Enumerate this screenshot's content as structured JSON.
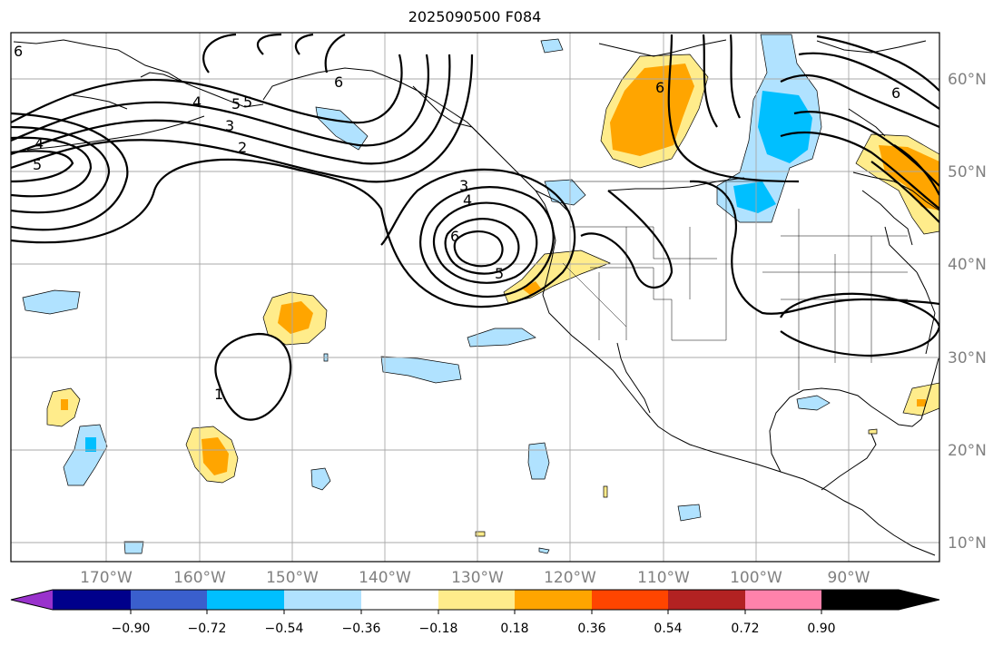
{
  "title": "2025090500 F084",
  "map": {
    "lon_ticks": [
      "170°W",
      "160°W",
      "150°W",
      "140°W",
      "130°W",
      "120°W",
      "110°W",
      "100°W",
      "90°W"
    ],
    "lat_ticks": [
      "60°N",
      "50°N",
      "40°N",
      "30°N",
      "20°N",
      "10°N"
    ],
    "contour_labels": [
      "6",
      "6",
      "6",
      "5",
      "5",
      "4",
      "3",
      "2",
      "4",
      "5",
      "3",
      "4",
      "6",
      "5",
      "1",
      "6"
    ]
  },
  "colorbar": {
    "colors": [
      "#9932cc",
      "#00008b",
      "#3a5fcd",
      "#00bfff",
      "#b0e2ff",
      "#ffffff",
      "#ffec8b",
      "#ffa500",
      "#ff4500",
      "#b22222",
      "#ff82ab"
    ],
    "labels": [
      "−0.90",
      "−0.72",
      "−0.54",
      "−0.36",
      "−0.18",
      "0.18",
      "0.36",
      "0.54",
      "0.72",
      "0.90"
    ]
  }
}
